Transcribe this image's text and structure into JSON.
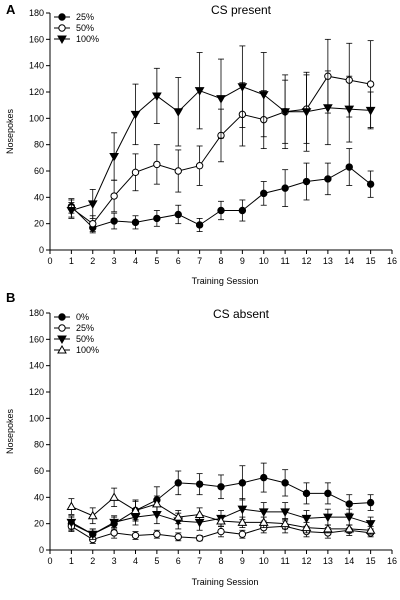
{
  "chart_data": [
    {
      "type": "line",
      "panel": "A",
      "title": "CS present",
      "xlabel": "Training Session",
      "ylabel": "Nosepokes",
      "xlim": [
        0,
        16
      ],
      "ylim": [
        0,
        180
      ],
      "xticks": [
        0,
        1,
        2,
        3,
        4,
        5,
        6,
        7,
        8,
        9,
        10,
        11,
        12,
        13,
        14,
        15,
        16
      ],
      "yticks": [
        0,
        20,
        40,
        60,
        80,
        100,
        120,
        140,
        160,
        180
      ],
      "legend_position": "top-left",
      "x": [
        1,
        2,
        3,
        4,
        5,
        6,
        7,
        8,
        9,
        10,
        11,
        12,
        13,
        14,
        15
      ],
      "series": [
        {
          "name": "25%",
          "marker": "circle-filled",
          "values": [
            33,
            17,
            22,
            21,
            24,
            27,
            19,
            30,
            30,
            43,
            47,
            52,
            54,
            63,
            50
          ],
          "errors": [
            5,
            4,
            6,
            5,
            6,
            7,
            5,
            7,
            8,
            9,
            14,
            14,
            12,
            14,
            10
          ]
        },
        {
          "name": "50%",
          "marker": "circle-open",
          "values": [
            32,
            20,
            41,
            59,
            65,
            60,
            64,
            87,
            103,
            99,
            105,
            107,
            132,
            129,
            126
          ],
          "errors": [
            7,
            6,
            12,
            14,
            15,
            16,
            15,
            20,
            24,
            22,
            24,
            26,
            28,
            28,
            33
          ]
        },
        {
          "name": "100%",
          "marker": "triangle-down-filled",
          "values": [
            30,
            35,
            71,
            103,
            117,
            105,
            121,
            115,
            124,
            118,
            105,
            105,
            108,
            107,
            106
          ],
          "errors": [
            6,
            11,
            18,
            23,
            21,
            26,
            29,
            30,
            31,
            32,
            28,
            30,
            28,
            25,
            14
          ]
        }
      ]
    },
    {
      "type": "line",
      "panel": "B",
      "title": "CS absent",
      "xlabel": "Training Session",
      "ylabel": "Nosepokes",
      "xlim": [
        0,
        16
      ],
      "ylim": [
        0,
        180
      ],
      "xticks": [
        0,
        1,
        2,
        3,
        4,
        5,
        6,
        7,
        8,
        9,
        10,
        11,
        12,
        13,
        14,
        15,
        16
      ],
      "yticks": [
        0,
        20,
        40,
        60,
        80,
        100,
        120,
        140,
        160,
        180
      ],
      "legend_position": "top-left",
      "x": [
        1,
        2,
        3,
        4,
        5,
        6,
        7,
        8,
        9,
        10,
        11,
        12,
        13,
        14,
        15
      ],
      "series": [
        {
          "name": "0%",
          "marker": "circle-filled",
          "values": [
            20,
            12,
            20,
            30,
            38,
            51,
            50,
            48,
            51,
            55,
            51,
            43,
            43,
            35,
            36
          ],
          "errors": [
            5,
            4,
            5,
            8,
            10,
            9,
            8,
            9,
            13,
            11,
            10,
            8,
            8,
            7,
            6
          ]
        },
        {
          "name": "25%",
          "marker": "circle-open",
          "values": [
            18,
            8,
            13,
            11,
            12,
            10,
            9,
            14,
            12,
            17,
            18,
            14,
            13,
            15,
            13
          ],
          "errors": [
            4,
            3,
            4,
            3,
            3,
            3,
            2,
            4,
            3,
            4,
            5,
            4,
            4,
            4,
            3
          ]
        },
        {
          "name": "50%",
          "marker": "triangle-down-filled",
          "values": [
            21,
            12,
            21,
            25,
            27,
            22,
            21,
            24,
            31,
            29,
            29,
            24,
            25,
            25,
            20
          ],
          "errors": [
            5,
            4,
            5,
            6,
            7,
            6,
            6,
            6,
            8,
            7,
            7,
            6,
            6,
            6,
            5
          ]
        },
        {
          "name": "100%",
          "marker": "triangle-up-open",
          "values": [
            33,
            26,
            40,
            30,
            35,
            25,
            27,
            22,
            21,
            21,
            20,
            17,
            16,
            16,
            15
          ],
          "errors": [
            6,
            6,
            7,
            7,
            6,
            5,
            5,
            4,
            4,
            4,
            4,
            4,
            3,
            3,
            3
          ]
        }
      ]
    }
  ]
}
